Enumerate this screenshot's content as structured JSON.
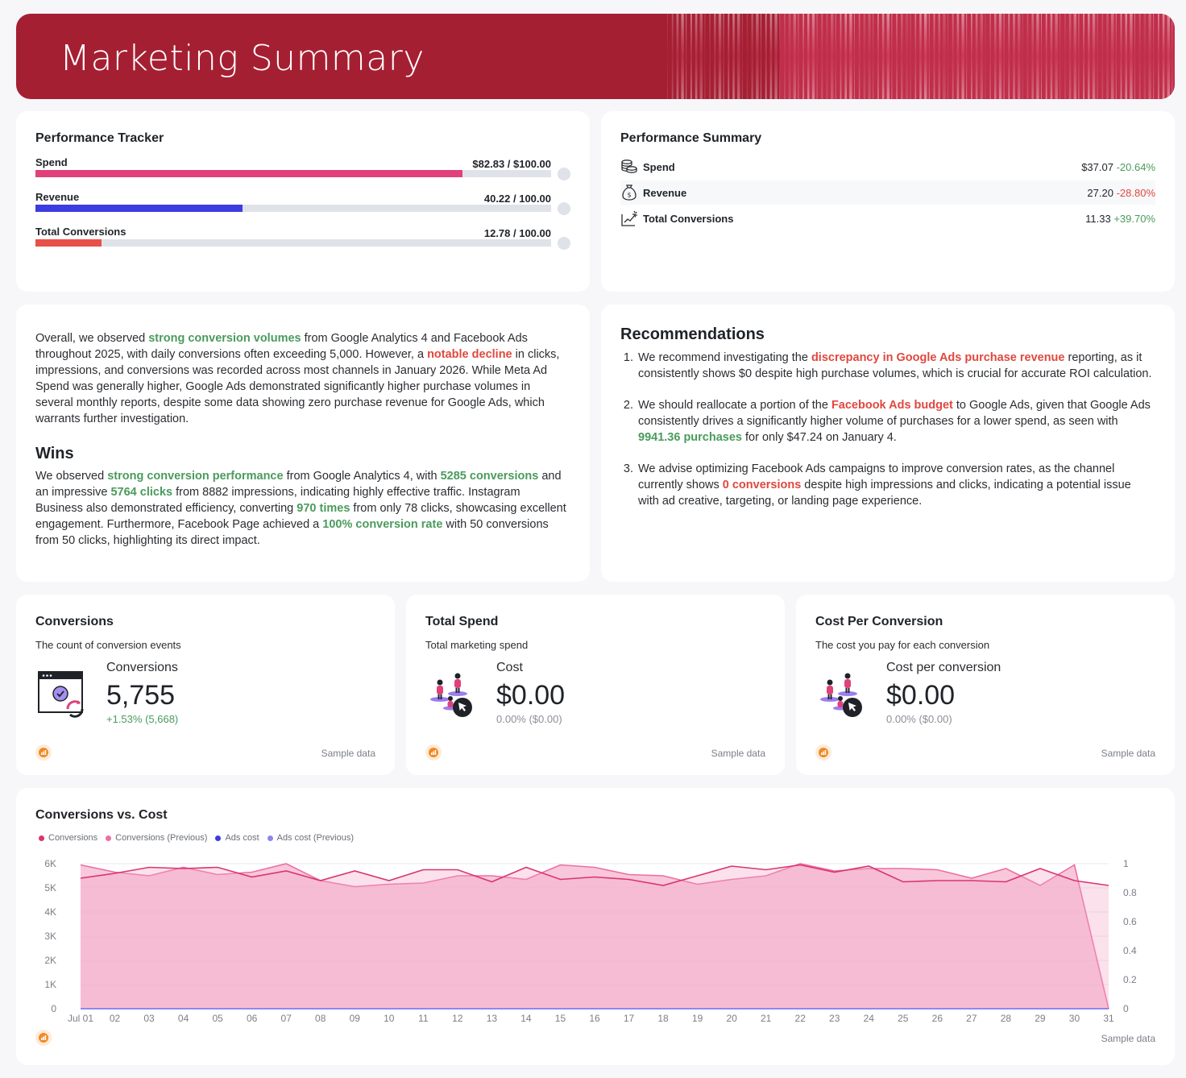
{
  "header": {
    "title": "Marketing Summary"
  },
  "tracker": {
    "title": "Performance Tracker",
    "rows": [
      {
        "label": "Spend",
        "value_text": "$82.83 / $100.00",
        "fraction": 0.8283,
        "color": "#e0417a"
      },
      {
        "label": "Revenue",
        "value_text": "40.22 / 100.00",
        "fraction": 0.4022,
        "color": "#3d3ce0"
      },
      {
        "label": "Total Conversions",
        "value_text": "12.78 / 100.00",
        "fraction": 0.1278,
        "color": "#e8504a"
      }
    ]
  },
  "summary": {
    "title": "Performance Summary",
    "rows": [
      {
        "icon": "coins-icon",
        "label": "Spend",
        "value": "$37.07",
        "change": "-20.64%",
        "change_color": "positive"
      },
      {
        "icon": "money-bag-icon",
        "label": "Revenue",
        "value": "27.20",
        "change": "-28.80%",
        "change_color": "negative"
      },
      {
        "icon": "growth-chart-icon",
        "label": "Total Conversions",
        "value": "11.33",
        "change": "+39.70%",
        "change_color": "positive"
      }
    ]
  },
  "overview": {
    "p1": "Overall, we observed ",
    "h1": "strong conversion volumes",
    "p2": " from Google Analytics 4 and Facebook Ads throughout 2025, with daily conversions often exceeding 5,000. However, a ",
    "h2": "notable decline",
    "p3": " in clicks, impressions, and conversions was recorded across most channels in January 2026. While Meta Ad Spend was generally higher, Google Ads demonstrated significantly higher purchase volumes in several monthly reports, despite some data showing zero purchase revenue for Google Ads, which warrants further investigation."
  },
  "wins": {
    "title": "Wins",
    "p1": "We observed ",
    "h1": "strong conversion performance",
    "p2": " from Google Analytics 4, with ",
    "h2": "5285 conversions",
    "p3": " and an impressive ",
    "h3": "5764 clicks",
    "p4": " from 8882 impressions, indicating highly effective traffic. Instagram Business also demonstrated efficiency, converting ",
    "h4": "970 times",
    "p5": " from only 78 clicks, showcasing excellent engagement. Furthermore, Facebook Page achieved a ",
    "h5": "100% conversion rate",
    "p6": " with 50 conversions from 50 clicks, highlighting its direct impact."
  },
  "recommendations": {
    "title": "Recommendations",
    "items": [
      {
        "a": "We recommend investigating the ",
        "h": "discrepancy in Google Ads purchase revenue",
        "hc": "red",
        "b": " reporting, as it consistently shows $0 despite high purchase volumes, which is crucial for accurate ROI calculation."
      },
      {
        "a": "We should reallocate a portion of the ",
        "h": "Facebook Ads budget",
        "hc": "red",
        "b": " to Google Ads, given that Google Ads consistently drives a significantly higher volume of purchases for a lower spend, as seen with ",
        "h2": "9941.36 purchases",
        "c": " for only $47.24 on January 4."
      },
      {
        "a": "We advise optimizing Facebook Ads campaigns to improve conversion rates, as the channel currently shows ",
        "h": "0 conversions",
        "hc": "red",
        "b": " despite high impressions and clicks, indicating a potential issue with ad creative, targeting, or landing page experience."
      }
    ]
  },
  "kpis": [
    {
      "title": "Conversions",
      "subtitle": "The count of conversion events",
      "metric": "Conversions",
      "value": "5,755",
      "change": "+1.53% (5,668)",
      "icon": "browser-refresh-icon",
      "footer": "Sample data"
    },
    {
      "title": "Total Spend",
      "subtitle": "Total marketing spend",
      "metric": "Cost",
      "value": "$0.00",
      "change": "0.00% ($0.00)",
      "icon": "audience-click-icon",
      "footer": "Sample data"
    },
    {
      "title": "Cost Per Conversion",
      "subtitle": "The cost you pay for each conversion",
      "metric": "Cost per conversion",
      "value": "$0.00",
      "change": "0.00% ($0.00)",
      "icon": "audience-click-icon",
      "footer": "Sample data"
    }
  ],
  "chart_panel": {
    "title": "Conversions vs. Cost",
    "footer": "Sample data"
  },
  "chart_data": {
    "type": "area",
    "title": "Conversions vs. Cost",
    "x": [
      "Jul 01",
      "02",
      "03",
      "04",
      "05",
      "06",
      "07",
      "08",
      "09",
      "10",
      "11",
      "12",
      "13",
      "14",
      "15",
      "16",
      "17",
      "18",
      "19",
      "20",
      "21",
      "22",
      "23",
      "24",
      "25",
      "26",
      "27",
      "28",
      "29",
      "30",
      "31"
    ],
    "y_left": {
      "ticks": [
        "0",
        "1K",
        "2K",
        "3K",
        "4K",
        "5K",
        "6K"
      ],
      "lim": [
        0,
        6000
      ]
    },
    "y_right": {
      "ticks": [
        "0",
        "0.2",
        "0.4",
        "0.6",
        "0.8",
        "1"
      ],
      "lim": [
        0,
        1
      ]
    },
    "grid": true,
    "legend_position": "top-left",
    "series": [
      {
        "name": "Conversions",
        "axis": "left",
        "color": "#d9356e",
        "values": [
          5400,
          5600,
          5850,
          5800,
          5850,
          5450,
          5700,
          5300,
          5700,
          5300,
          5750,
          5750,
          5250,
          5850,
          5350,
          5450,
          5350,
          5100,
          5500,
          5900,
          5750,
          5950,
          5650,
          5900,
          5250,
          5300,
          5300,
          5250,
          5800,
          5300,
          5100
        ]
      },
      {
        "name": "Conversions (Previous)",
        "axis": "left",
        "color": "#ec6ea3",
        "values": [
          5950,
          5650,
          5500,
          5850,
          5550,
          5650,
          6000,
          5300,
          5050,
          5150,
          5200,
          5500,
          5500,
          5350,
          5950,
          5850,
          5550,
          5500,
          5150,
          5350,
          5500,
          6000,
          5700,
          5800,
          5800,
          5750,
          5400,
          5800,
          5100,
          5950,
          0
        ]
      },
      {
        "name": "Ads cost",
        "axis": "right",
        "color": "#3d3ce0",
        "values": [
          0,
          0,
          0,
          0,
          0,
          0,
          0,
          0,
          0,
          0,
          0,
          0,
          0,
          0,
          0,
          0,
          0,
          0,
          0,
          0,
          0,
          0,
          0,
          0,
          0,
          0,
          0,
          0,
          0,
          0,
          0
        ]
      },
      {
        "name": "Ads cost (Previous)",
        "axis": "right",
        "color": "#8b86f0",
        "values": [
          0,
          0,
          0,
          0,
          0,
          0,
          0,
          0,
          0,
          0,
          0,
          0,
          0,
          0,
          0,
          0,
          0,
          0,
          0,
          0,
          0,
          0,
          0,
          0,
          0,
          0,
          0,
          0,
          0,
          0,
          0
        ]
      }
    ]
  }
}
